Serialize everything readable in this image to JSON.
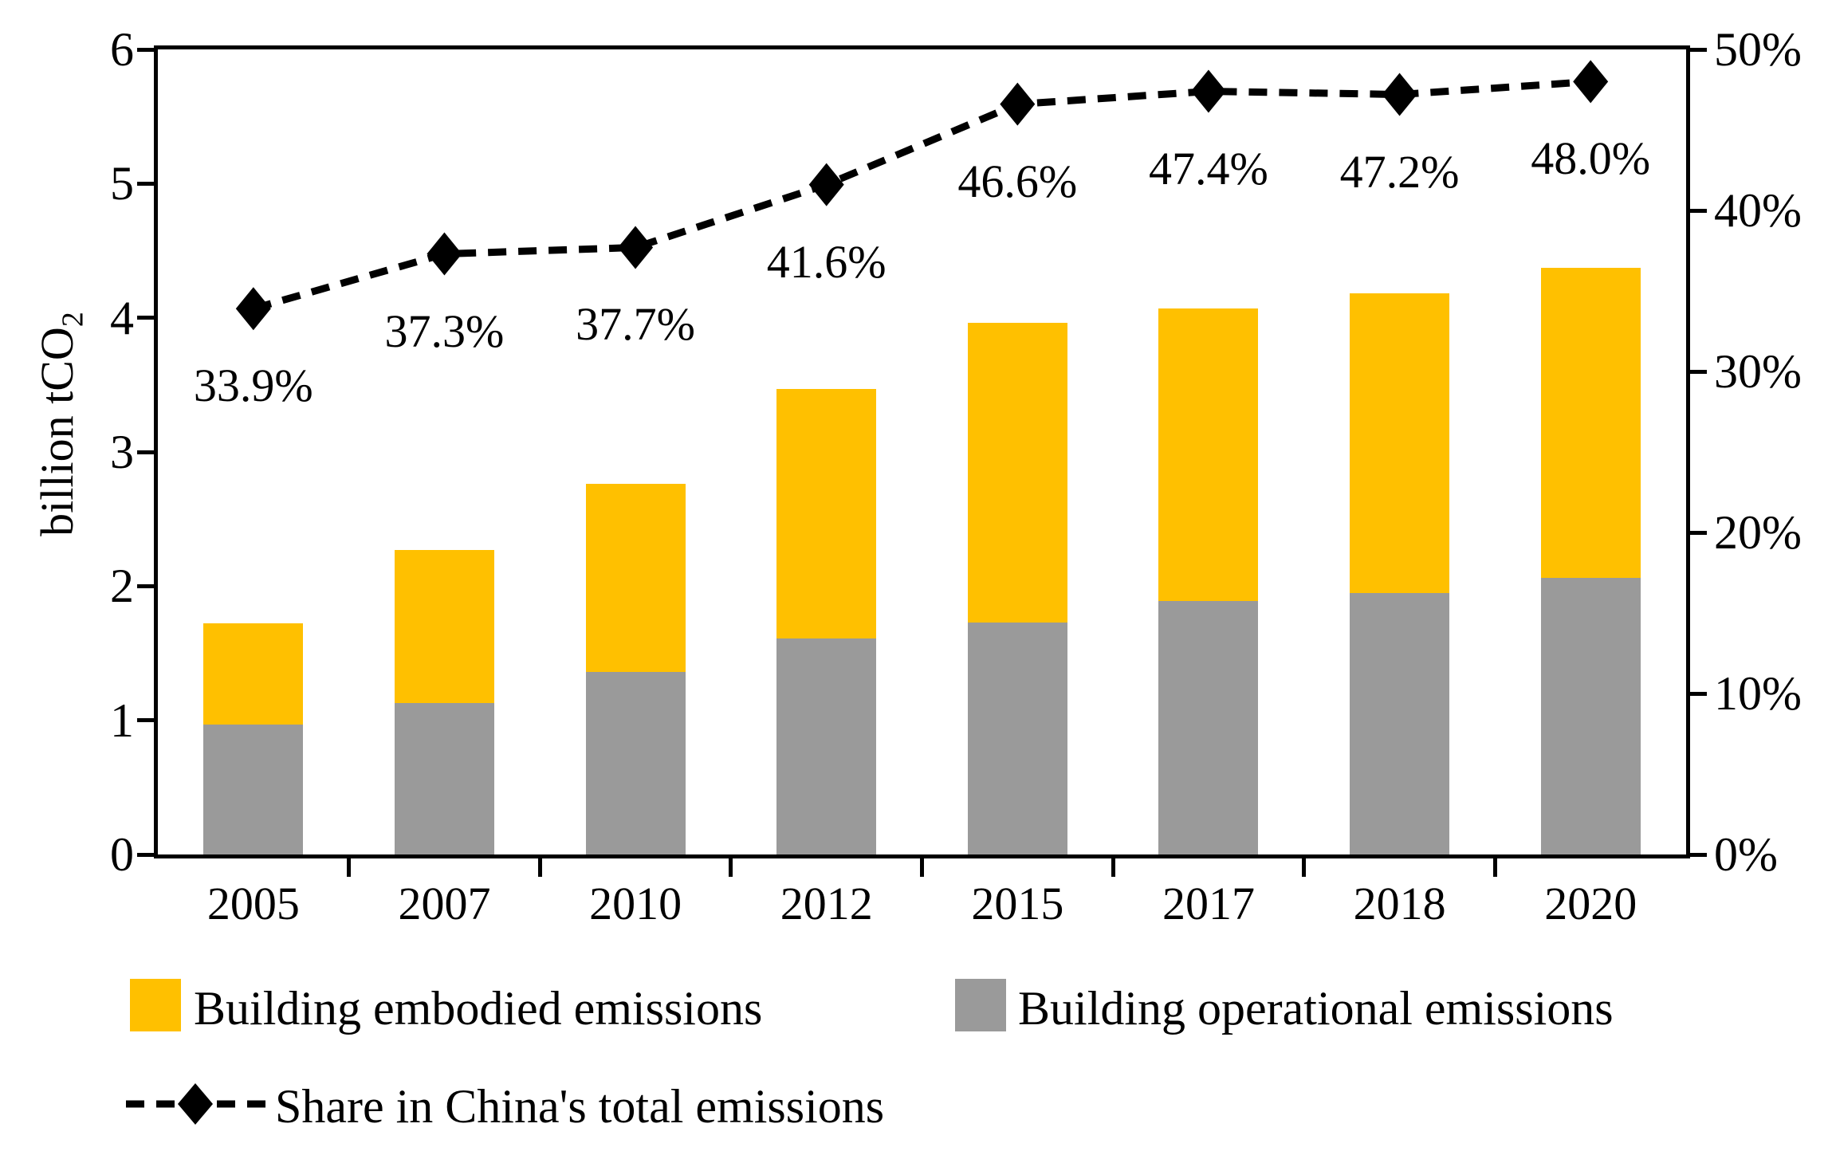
{
  "chart_data": {
    "type": "bar",
    "stacked": true,
    "grid": false,
    "legend_position": "bottom",
    "categories": [
      "2005",
      "2007",
      "2010",
      "2012",
      "2015",
      "2017",
      "2018",
      "2020"
    ],
    "series": [
      {
        "name": "Building operational emissions",
        "color": "#9a9a9a",
        "values": [
          0.97,
          1.13,
          1.36,
          1.61,
          1.73,
          1.89,
          1.95,
          2.06
        ]
      },
      {
        "name": "Building embodied emissions",
        "color": "#ffc000",
        "values": [
          0.75,
          1.14,
          1.4,
          1.86,
          2.23,
          2.18,
          2.23,
          2.31
        ]
      }
    ],
    "line_overlay": {
      "name": "Share in China's total emissions",
      "type": "line",
      "style": "dashed",
      "marker": "diamond",
      "color": "#000000",
      "axis": "right",
      "values": [
        33.9,
        37.3,
        37.7,
        41.6,
        46.6,
        47.4,
        47.2,
        48.0
      ],
      "labels": [
        "33.9%",
        "37.3%",
        "37.7%",
        "41.6%",
        "46.6%",
        "47.4%",
        "47.2%",
        "48.0%"
      ]
    },
    "left_axis": {
      "title_main": "billion tCO",
      "title_sub": "2",
      "ticks": [
        "0",
        "1",
        "2",
        "3",
        "4",
        "5",
        "6"
      ],
      "ylim": [
        0,
        6
      ]
    },
    "right_axis": {
      "ticks": [
        "0%",
        "10%",
        "20%",
        "30%",
        "40%",
        "50%"
      ],
      "ylim": [
        0,
        50
      ]
    }
  },
  "legend": {
    "embodied": "Building embodied emissions",
    "operational": "Building operational emissions",
    "share": "Share in China's total emissions"
  },
  "colors": {
    "embodied": "#ffc000",
    "operational": "#9a9a9a",
    "line": "#000000",
    "axis": "#000000"
  }
}
